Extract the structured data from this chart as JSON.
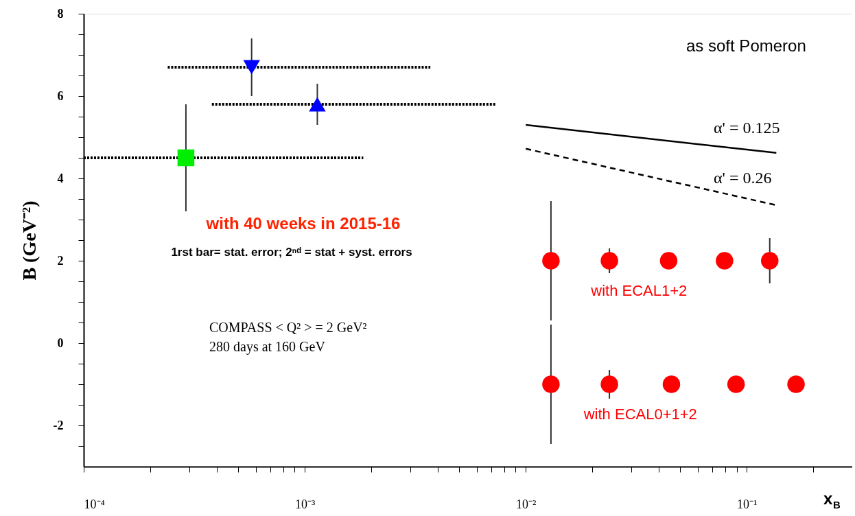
{
  "chart_data": {
    "type": "scatter",
    "xlabel": "x$_{B}$",
    "ylabel": "B (GeV⁻²)",
    "xlim": [
      0.0001,
      0.3
    ],
    "ylim": [
      -3,
      8
    ],
    "log": "x",
    "grid": false,
    "xticks": [
      {
        "value": 0.0001,
        "label": "10⁻⁴"
      },
      {
        "value": 0.0002,
        "label": null
      },
      {
        "value": 0.0003,
        "label": null
      },
      {
        "value": 0.0004,
        "label": null
      },
      {
        "value": 0.0005,
        "label": null
      },
      {
        "value": 0.0006,
        "label": null
      },
      {
        "value": 0.0007,
        "label": null
      },
      {
        "value": 0.0008,
        "label": null
      },
      {
        "value": 0.0009,
        "label": null
      },
      {
        "value": 0.001,
        "label": "10⁻³"
      },
      {
        "value": 0.002,
        "label": null
      },
      {
        "value": 0.003,
        "label": null
      },
      {
        "value": 0.004,
        "label": null
      },
      {
        "value": 0.005,
        "label": null
      },
      {
        "value": 0.006,
        "label": null
      },
      {
        "value": 0.007,
        "label": null
      },
      {
        "value": 0.008,
        "label": null
      },
      {
        "value": 0.009,
        "label": null
      },
      {
        "value": 0.01,
        "label": "10⁻²"
      },
      {
        "value": 0.02,
        "label": null
      },
      {
        "value": 0.03,
        "label": null
      },
      {
        "value": 0.04,
        "label": null
      },
      {
        "value": 0.05,
        "label": null
      },
      {
        "value": 0.06,
        "label": null
      },
      {
        "value": 0.07,
        "label": null
      },
      {
        "value": 0.08,
        "label": null
      },
      {
        "value": 0.09,
        "label": null
      },
      {
        "value": 0.1,
        "label": "10⁻¹"
      },
      {
        "value": 0.2,
        "label": null
      }
    ],
    "yticks": [
      -2,
      {
        "value": -2.5,
        "label": null
      },
      {
        "value": -1.5,
        "label": null
      },
      {
        "value": -1,
        "label": null
      },
      {
        "value": -0.5,
        "label": null
      },
      0,
      {
        "value": 0.5,
        "label": null
      },
      {
        "value": 1,
        "label": null
      },
      {
        "value": 1.5,
        "label": null
      },
      2,
      {
        "value": 2.5,
        "label": null
      },
      {
        "value": 3,
        "label": null
      },
      {
        "value": 3.5,
        "label": null
      },
      4,
      {
        "value": 4.5,
        "label": null
      },
      {
        "value": 5,
        "label": null
      },
      {
        "value": 5.5,
        "label": null
      },
      6,
      {
        "value": 6.5,
        "label": null
      },
      {
        "value": 7,
        "label": null
      },
      {
        "value": 7.5,
        "label": null
      },
      8
    ],
    "series": [
      {
        "color": "#00ee00",
        "marker": "square",
        "x": [
          0.00029
        ],
        "values": [
          4.5
        ],
        "errors": [
          1.3
        ],
        "xerrors": [
          [
            0.0001,
            0.00184
          ]
        ]
      },
      {
        "color": "#0000ff",
        "marker": "triangle-down",
        "x": [
          0.000575
        ],
        "values": [
          6.7
        ],
        "errors": [
          0.7
        ],
        "xerrors": [
          [
            0.00024,
            0.0037
          ]
        ]
      },
      {
        "color": "#0000ff",
        "marker": "triangle",
        "x": [
          0.00114
        ],
        "values": [
          5.8
        ],
        "errors": [
          0.5
        ],
        "xerrors": [
          [
            0.00038,
            0.0073
          ]
        ]
      },
      {
        "name": "with ECAL1+2",
        "color": "#ff0000",
        "marker": "circle",
        "x": [
          0.013,
          0.0239,
          0.0443,
          0.0793,
          0.127
        ],
        "values": [
          2,
          2,
          2,
          2,
          2
        ],
        "errors": [
          1.45,
          0.3,
          null,
          null,
          0.55
        ]
      },
      {
        "name": "with ECAL0+1+2",
        "color": "#ff0000",
        "marker": "circle",
        "x": [
          0.013,
          0.0239,
          0.0456,
          0.0894,
          0.167
        ],
        "values": [
          -1,
          -1,
          -1,
          -1,
          -1
        ],
        "errors": [
          1.45,
          0.35,
          null,
          null,
          null
        ]
      },
      {
        "type": "line",
        "color": "#000000",
        "line_style": "solid",
        "x": [
          0.01,
          0.136
        ],
        "values": [
          5.3,
          4.62
        ]
      },
      {
        "type": "line",
        "color": "#000000",
        "line_style": "dashed",
        "x": [
          0.01,
          0.136
        ],
        "values": [
          4.72,
          3.35
        ]
      }
    ],
    "annotations": [
      "as soft Pomeron",
      "with  40  weeks   in  2015-16",
      "1rst bar= stat. error; 2ⁿᵈ = stat + syst. errors",
      "COMPASS    < Q² > = 2 GeV²",
      "280 days at 160 GeV",
      "α' = 0.125",
      "α' = 0.26"
    ]
  }
}
